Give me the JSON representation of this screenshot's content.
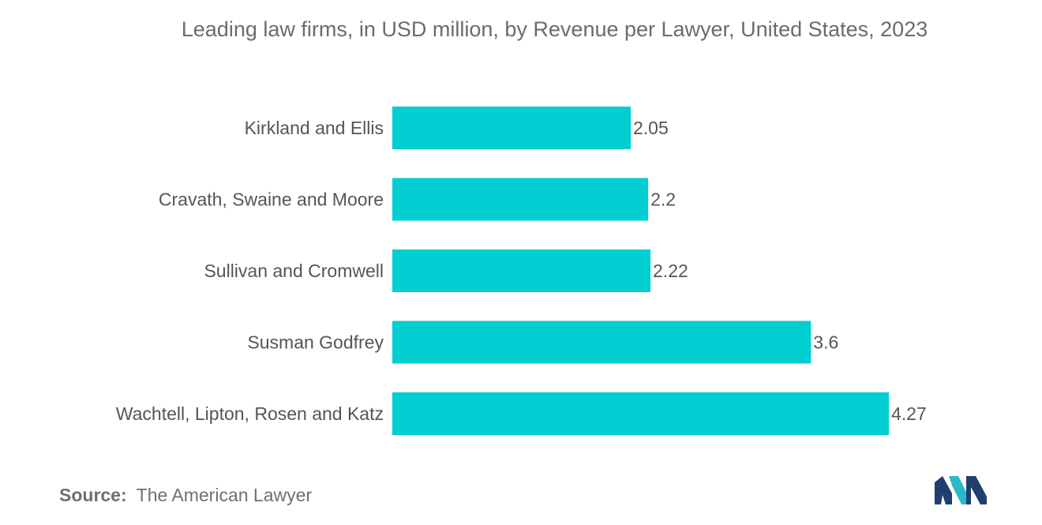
{
  "chart_data": {
    "type": "bar",
    "orientation": "horizontal",
    "title": "Leading law firms, in USD million, by Revenue per Lawyer, United States, 2023",
    "categories": [
      "Kirkland and Ellis",
      "Cravath, Swaine and Moore",
      "Sullivan and Cromwell",
      "Susman Godfrey",
      "Wachtell, Lipton, Rosen and Katz"
    ],
    "values": [
      2.05,
      2.2,
      2.22,
      3.6,
      4.27
    ],
    "value_labels": [
      "2.05",
      "2.2",
      "2.22",
      "3.6",
      "4.27"
    ],
    "xlabel": "",
    "ylabel": "",
    "xlim": [
      0,
      4.27
    ],
    "grid": false,
    "bar_color": "#00ced1"
  },
  "source": {
    "label": "Source:",
    "text": "The American Lawyer"
  },
  "logo": {
    "icon": "mordor-intelligence-logo",
    "colors": [
      "#1f3f6e",
      "#2bb8c9"
    ]
  }
}
